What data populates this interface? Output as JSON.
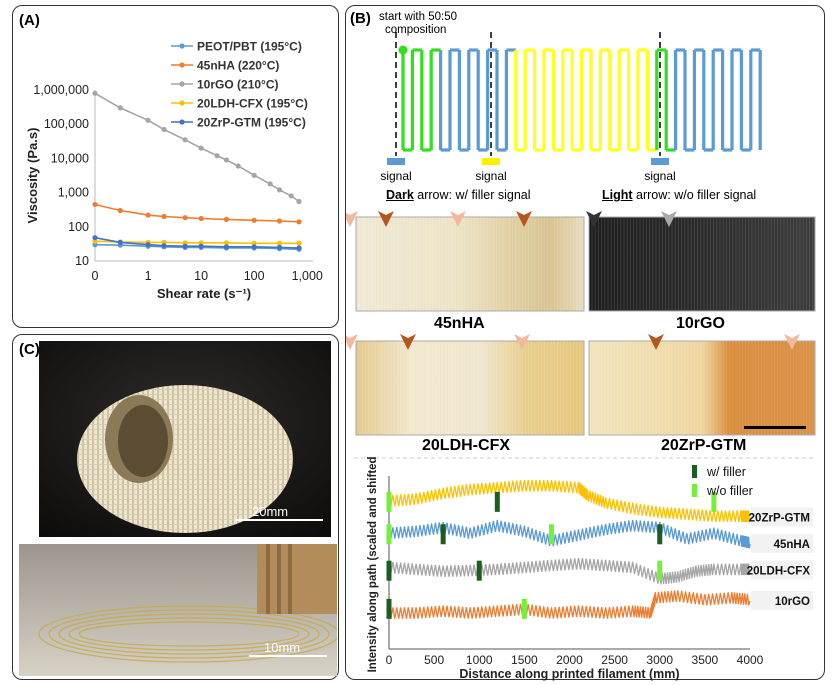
{
  "panel_labels": {
    "a": "(A)",
    "b": "(B)",
    "c": "(C)"
  },
  "chart_data": [
    {
      "type": "line",
      "panel": "A",
      "xlabel": "Shear rate (s⁻¹)",
      "ylabel": "Viscosity (Pa.s)",
      "x_scale": "log",
      "y_scale": "log",
      "x_tick_labels": [
        "0",
        "1",
        "10",
        "100",
        "1,000"
      ],
      "y_tick_labels": [
        "10",
        "100",
        "1,000",
        "10,000",
        "100,000",
        "1,000,000"
      ],
      "ylim": [
        10,
        1000000
      ],
      "legend_position": "top-right",
      "series": [
        {
          "name": "PEOT/PBT (195°C)",
          "color": "#5b9bd5",
          "x": [
            0.1,
            0.3,
            1,
            2,
            5,
            10,
            30,
            100,
            300,
            700
          ],
          "y": [
            30,
            29,
            27,
            26,
            25,
            25,
            24,
            24,
            23,
            22
          ]
        },
        {
          "name": "45nHA    (220°C)",
          "color": "#ed7d31",
          "x": [
            0.1,
            0.3,
            1,
            2,
            5,
            10,
            30,
            100,
            300,
            700
          ],
          "y": [
            450,
            300,
            220,
            200,
            185,
            175,
            165,
            155,
            148,
            140
          ]
        },
        {
          "name": "10rGO    (210°C)",
          "color": "#a5a5a5",
          "x": [
            0.1,
            0.3,
            1,
            2,
            5,
            10,
            20,
            30,
            50,
            100,
            200,
            300,
            500,
            700
          ],
          "y": [
            800000,
            300000,
            130000,
            70000,
            35000,
            20000,
            12000,
            9000,
            6000,
            3200,
            1800,
            1200,
            800,
            550
          ]
        },
        {
          "name": "20LDH-CFX (195°C)",
          "color": "#ffc000",
          "x": [
            0.1,
            0.3,
            1,
            2,
            5,
            10,
            30,
            100,
            300,
            700
          ],
          "y": [
            38,
            36,
            35,
            35,
            34,
            34,
            34,
            33,
            33,
            33
          ]
        },
        {
          "name": "20ZrP-GTM (195°C)",
          "color": "#4472c4",
          "x": [
            0.1,
            0.3,
            1,
            2,
            5,
            10,
            30,
            100,
            300,
            700
          ],
          "y": [
            48,
            35,
            30,
            28,
            27,
            27,
            26,
            26,
            25,
            24
          ]
        }
      ]
    },
    {
      "type": "line",
      "panel": "B-bottom",
      "xlabel": "Distance along printed filament (mm)",
      "ylabel": "Intensity along path (scaled and shifted)",
      "x_tick_labels": [
        "0",
        "500",
        "1000",
        "1500",
        "2000",
        "2500",
        "3000",
        "3500",
        "4000"
      ],
      "xlim": [
        0,
        4000
      ],
      "legend": [
        {
          "label": "w/ filler",
          "color": "#1b5e20"
        },
        {
          "label": "w/o filler",
          "color": "#76ee3c"
        }
      ],
      "series": [
        {
          "name": "20ZrP-GTM",
          "color": "#ffc000",
          "x": [
            0,
            300,
            600,
            900,
            1200,
            1500,
            1800,
            2100,
            2200,
            2400,
            2700,
            3000,
            3300,
            3600,
            3900,
            4000
          ],
          "y": [
            3.55,
            3.6,
            3.75,
            3.85,
            3.9,
            3.95,
            3.95,
            3.9,
            3.7,
            3.5,
            3.35,
            3.25,
            3.2,
            3.15,
            3.15,
            3.15
          ],
          "w_filler_x": [
            1200
          ],
          "wo_filler_x": [
            0,
            3600
          ]
        },
        {
          "name": "45nHA",
          "color": "#5b9bd5",
          "x": [
            0,
            300,
            600,
            900,
            1200,
            1500,
            1800,
            2100,
            2400,
            2700,
            3000,
            3300,
            3600,
            3900,
            4000
          ],
          "y": [
            2.7,
            2.75,
            2.85,
            2.7,
            2.9,
            2.75,
            2.5,
            2.65,
            2.8,
            2.9,
            2.85,
            2.55,
            2.7,
            2.5,
            2.45
          ],
          "w_filler_x": [
            600,
            3000
          ],
          "wo_filler_x": [
            0,
            1800
          ]
        },
        {
          "name": "20LDH-CFX",
          "color": "#a5a5a5",
          "x": [
            0,
            300,
            600,
            900,
            1200,
            1500,
            1800,
            2100,
            2400,
            2700,
            3000,
            3200,
            3400,
            3600,
            3900,
            4000
          ],
          "y": [
            1.8,
            1.75,
            1.7,
            1.72,
            1.75,
            1.8,
            1.85,
            1.9,
            1.85,
            1.8,
            1.5,
            1.55,
            1.7,
            1.75,
            1.75,
            1.75
          ],
          "w_filler_x": [
            0,
            1000
          ],
          "wo_filler_x": [
            3000
          ]
        },
        {
          "name": "10rGO",
          "color": "#ed7d31",
          "x": [
            0,
            300,
            600,
            900,
            1200,
            1500,
            1800,
            2100,
            2400,
            2700,
            2900,
            2950,
            3200,
            3500,
            3800,
            4000
          ],
          "y": [
            0.6,
            0.6,
            0.65,
            0.6,
            0.65,
            0.7,
            0.6,
            0.65,
            0.6,
            0.65,
            0.6,
            1.0,
            1.05,
            0.95,
            1.0,
            0.95
          ],
          "w_filler_x": [
            0
          ],
          "wo_filler_x": [
            1500
          ]
        }
      ]
    }
  ],
  "schematic": {
    "start_label": "start with 50:50\ncomposition",
    "signal_label": "signal",
    "colors": {
      "blue": "#5b9bd5",
      "yellow": "#ffff22",
      "green": "#33dd22",
      "signal_blue": "#5b9bd5",
      "signal_yellow": "#ffee00"
    }
  },
  "arrow_legend": {
    "dark_word": "Dark",
    "dark_rest": " arrow: w/ filler signal",
    "light_word": "Light",
    "light_rest": " arrow: w/o filler signal"
  },
  "photo_labels": [
    "45nHA",
    "10rGO",
    "20LDH-CFX",
    "20ZrP-GTM"
  ],
  "scalebars": {
    "top": "20mm",
    "bottom": "10mm"
  }
}
